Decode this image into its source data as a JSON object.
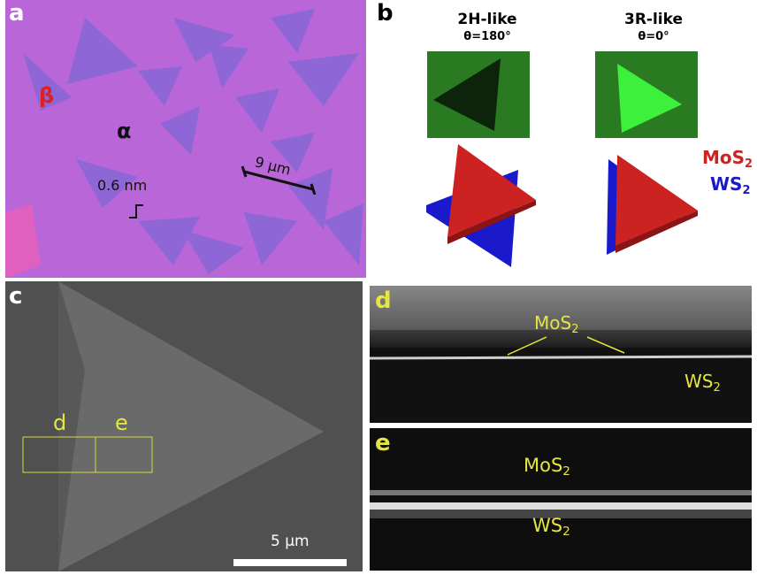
{
  "panels": {
    "a": {
      "label": "a",
      "beta": "β",
      "alpha": "α",
      "thickness": "0.6 nm",
      "scale": "9 μm"
    },
    "b": {
      "label": "b",
      "left_title": "2H-like",
      "left_angle": "θ=180°",
      "right_title": "3R-like",
      "right_angle": "θ=0°",
      "legend_top": "MoS",
      "legend_bottom": "WS",
      "subscript": "2",
      "colors": {
        "MoS2": "#cc2222",
        "WS2": "#1a1acc"
      }
    },
    "c": {
      "label": "c",
      "box_d": "d",
      "box_e": "e",
      "scale": "5 μm"
    },
    "d": {
      "label": "d",
      "top": "MoS",
      "bottom": "WS",
      "subscript": "2"
    },
    "e": {
      "label": "e",
      "top": "MoS",
      "bottom": "WS",
      "subscript": "2"
    }
  }
}
